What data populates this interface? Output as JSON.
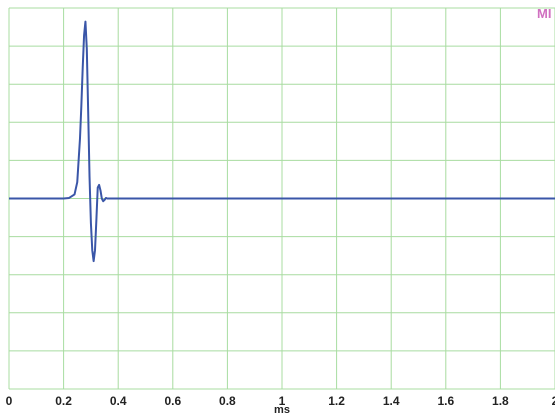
{
  "chart_data": {
    "type": "line",
    "title": "",
    "xlabel": "ms",
    "ylabel": "",
    "xlim": [
      0,
      2
    ],
    "x_ticks": [
      "0",
      "0.2",
      "0.4",
      "0.6",
      "0.8",
      "1",
      "1.2",
      "1.4",
      "1.6",
      "1.8",
      "2"
    ],
    "ylim": [
      -7,
      7
    ],
    "y_gridlines": 11,
    "grid": true,
    "grid_color": "#a8dca0",
    "line_color": "#3a56a8",
    "corner_label": "MI",
    "corner_label_color": "#d070c0",
    "series": [
      {
        "x": [
          0,
          0.2,
          0.22,
          0.24,
          0.25,
          0.26,
          0.265,
          0.27,
          0.275,
          0.28,
          0.285,
          0.29,
          0.295,
          0.3,
          0.305,
          0.31,
          0.315,
          0.32,
          0.325,
          0.33,
          0.335,
          0.34,
          0.345,
          0.35,
          0.355,
          0.36,
          0.37,
          0.38,
          2
        ],
        "y": [
          0,
          0,
          0.02,
          0.15,
          0.6,
          2.2,
          3.4,
          4.8,
          6.0,
          6.5,
          5.5,
          3.2,
          0.8,
          -0.9,
          -1.9,
          -2.3,
          -1.9,
          -0.8,
          0.4,
          0.5,
          0.3,
          0.0,
          -0.1,
          -0.05,
          0.02,
          0,
          0,
          0,
          0
        ]
      }
    ]
  }
}
